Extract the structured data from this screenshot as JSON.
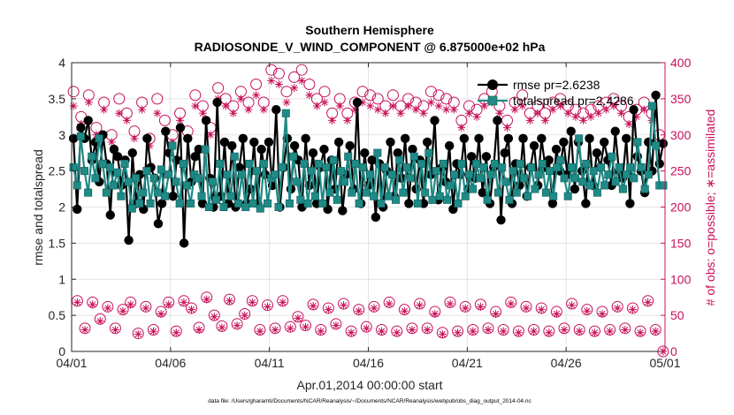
{
  "chart_data": {
    "type": "line",
    "title": "Southern Hemisphere",
    "subtitle": "RADIOSONDE_V_WIND_COMPONENT @ 6.875000e+02 hPa",
    "xlabel": "Apr.01,2014 00:00:00 start",
    "ylabel_left": "rmse and totalspread",
    "ylabel_right": "# of obs: o=possible; ∗=assimilated",
    "footer": "data file: /Users/gharamti/Documents/NCAR/Reanalysis/~/Documents/NCAR/Reanalysis/webpub/obs_diag_output_2014-04.nc",
    "xlim": [
      0,
      30
    ],
    "ylim_left": [
      0,
      4
    ],
    "ylim_right": [
      0,
      400
    ],
    "x_ticks": [
      0,
      5,
      10,
      15,
      20,
      25,
      30
    ],
    "x_tick_labels": [
      "04/01",
      "04/06",
      "04/11",
      "04/16",
      "04/21",
      "04/26",
      "05/01"
    ],
    "y_left_ticks": [
      "0",
      "0.5",
      "1",
      "1.5",
      "2",
      "2.5",
      "3",
      "3.5",
      "4"
    ],
    "y_right_ticks": [
      "0",
      "50",
      "100",
      "150",
      "200",
      "250",
      "300",
      "350",
      "400"
    ],
    "legend": {
      "position": "top-right",
      "entries": [
        "rmse pr=2.6238",
        "totalspread pr=2.4286"
      ]
    },
    "colors": {
      "rmse": "#000000",
      "spread": "#1f8a86",
      "spread_edge": "#0e5f5c",
      "obs": "#c8105a",
      "axis": "#262626",
      "grid": "#dcdcdc"
    },
    "series": [
      {
        "name": "rmse",
        "axis": "left",
        "values": [
          2.95,
          1.97,
          3.1,
          2.95,
          3.2,
          2.65,
          2.9,
          2.35,
          3.0,
          2.6,
          1.89,
          2.8,
          2.7,
          2.3,
          2.65,
          1.54,
          2.75,
          2.05,
          2.45,
          1.97,
          2.95,
          2.55,
          2.4,
          1.77,
          2.05,
          3.05,
          2.75,
          2.15,
          2.65,
          3.1,
          1.5,
          2.95,
          2.35,
          2.7,
          2.8,
          2.05,
          3.2,
          2.4,
          2.0,
          3.45,
          2.15,
          2.9,
          2.05,
          2.85,
          2.0,
          2.55,
          2.95,
          2.05,
          2.25,
          2.9,
          2.05,
          2.8,
          2.45,
          2.9,
          2.3,
          3.35,
          2.0,
          2.55,
          2.95,
          2.25,
          2.85,
          2.65,
          2.0,
          2.95,
          2.3,
          2.75,
          2.05,
          2.55,
          2.8,
          1.97,
          2.65,
          2.25,
          2.9,
          1.95,
          2.45,
          2.85,
          2.25,
          3.45,
          2.05,
          2.75,
          2.3,
          2.65,
          1.86,
          2.6,
          2.0,
          2.5,
          2.9,
          2.15,
          2.75,
          2.4,
          2.95,
          2.05,
          2.8,
          2.25,
          2.65,
          2.05,
          2.9,
          2.45,
          3.2,
          2.1,
          2.55,
          2.35,
          2.85,
          1.97,
          2.6,
          2.45,
          2.95,
          2.25,
          2.7,
          2.4,
          2.95,
          2.2,
          2.7,
          2.05,
          2.55,
          3.2,
          1.82,
          2.75,
          2.95,
          2.05,
          2.6,
          2.3,
          2.95,
          2.15,
          2.55,
          2.85,
          2.3,
          2.95,
          2.55,
          2.65,
          2.05,
          2.8,
          2.5,
          2.9,
          2.45,
          3.05,
          2.25,
          2.9,
          2.5,
          2.05,
          2.95,
          2.3,
          2.75,
          2.55,
          2.9,
          2.65,
          2.3,
          3.05,
          2.5,
          2.4,
          2.95,
          2.05,
          3.35,
          2.7,
          2.5,
          2.2,
          2.9,
          2.5,
          3.55,
          2.6,
          2.88
        ]
      },
      {
        "name": "totalspread",
        "axis": "left",
        "values": [
          2.55,
          2.3,
          2.98,
          2.5,
          2.2,
          2.7,
          2.4,
          2.95,
          2.6,
          2.2,
          2.55,
          2.3,
          2.48,
          2.15,
          2.6,
          2.35,
          1.98,
          2.4,
          2.05,
          2.2,
          2.5,
          2.05,
          2.4,
          2.2,
          2.52,
          2.15,
          2.45,
          2.85,
          2.35,
          2.05,
          2.6,
          2.3,
          2.05,
          2.45,
          2.4,
          2.15,
          2.8,
          2.0,
          2.35,
          2.1,
          2.6,
          2.0,
          2.45,
          2.15,
          2.7,
          2.05,
          2.45,
          2.0,
          2.6,
          2.05,
          2.5,
          1.98,
          2.6,
          2.05,
          2.4,
          2.45,
          2.0,
          2.55,
          3.3,
          2.05,
          2.7,
          2.35,
          2.1,
          2.6,
          2.05,
          2.5,
          2.15,
          2.6,
          2.05,
          2.55,
          2.2,
          2.65,
          2.1,
          2.5,
          2.35,
          2.7,
          2.2,
          2.6,
          2.05,
          2.55,
          2.2,
          2.45,
          2.15,
          2.75,
          2.05,
          2.55,
          2.15,
          2.45,
          2.1,
          2.65,
          2.2,
          2.55,
          2.4,
          2.7,
          2.05,
          2.6,
          2.2,
          2.75,
          2.1,
          2.5,
          2.15,
          2.6,
          2.1,
          2.3,
          2.45,
          2.05,
          2.6,
          2.15,
          2.45,
          2.25,
          2.6,
          2.4,
          2.55,
          2.1,
          2.45,
          2.6,
          2.2,
          2.55,
          2.35,
          2.1,
          2.5,
          2.2,
          2.6,
          2.4,
          2.15,
          2.55,
          2.25,
          2.45,
          2.6,
          2.2,
          2.5,
          2.15,
          2.55,
          2.65,
          2.4,
          2.15,
          2.55,
          2.4,
          2.95,
          2.35,
          2.6,
          2.3,
          2.5,
          2.2,
          2.55,
          2.3,
          2.45,
          2.7,
          2.35,
          2.55,
          2.25,
          2.45,
          2.55,
          2.4,
          2.9,
          2.55,
          2.25,
          2.45,
          3.4,
          2.85,
          2.3,
          2.3
        ]
      },
      {
        "name": "possible",
        "axis": "right",
        "marker": "circle",
        "values": [
          360,
          70,
          325,
          32,
          355,
          68,
          310,
          45,
          345,
          62,
          300,
          32,
          350,
          58,
          330,
          68,
          305,
          25,
          345,
          62,
          295,
          30,
          350,
          55,
          320,
          68,
          300,
          28,
          330,
          70,
          305,
          60,
          355,
          33,
          340,
          75,
          310,
          50,
          365,
          35,
          350,
          72,
          340,
          38,
          360,
          52,
          345,
          70,
          370,
          30,
          345,
          64,
          390,
          32,
          385,
          70,
          360,
          34,
          380,
          48,
          390,
          36,
          370,
          65,
          350,
          30,
          360,
          60,
          330,
          38,
          350,
          66,
          330,
          28,
          345,
          58,
          360,
          34,
          355,
          62,
          350,
          30,
          340,
          68,
          355,
          28,
          340,
          58,
          350,
          32,
          345,
          66,
          340,
          32,
          360,
          55,
          355,
          26,
          350,
          68,
          345,
          28,
          320,
          62,
          340,
          30,
          335,
          65,
          350,
          32,
          360,
          55,
          340,
          30,
          320,
          68,
          345,
          28,
          355,
          62,
          330,
          30,
          340,
          60,
          330,
          28,
          345,
          55,
          350,
          32,
          340,
          66,
          335,
          30,
          330,
          58,
          335,
          28,
          340,
          55,
          345,
          30,
          350,
          62,
          340,
          32,
          325,
          60,
          335,
          28,
          345,
          70,
          330,
          30,
          300,
          0
        ]
      },
      {
        "name": "assimilated",
        "axis": "right",
        "marker": "asterisk",
        "values": [
          340,
          68,
          315,
          30,
          345,
          65,
          300,
          42,
          335,
          60,
          290,
          30,
          330,
          56,
          320,
          65,
          295,
          24,
          335,
          60,
          285,
          28,
          330,
          52,
          305,
          65,
          290,
          26,
          320,
          68,
          295,
          58,
          340,
          30,
          330,
          72,
          300,
          48,
          350,
          33,
          340,
          70,
          330,
          36,
          350,
          50,
          335,
          68,
          355,
          28,
          335,
          62,
          375,
          30,
          370,
          68,
          345,
          32,
          365,
          46,
          375,
          34,
          355,
          63,
          340,
          28,
          345,
          58,
          320,
          36,
          340,
          64,
          320,
          26,
          335,
          56,
          345,
          32,
          340,
          60,
          335,
          28,
          330,
          66,
          340,
          26,
          330,
          56,
          340,
          30,
          335,
          64,
          330,
          30,
          345,
          52,
          340,
          24,
          335,
          66,
          335,
          26,
          310,
          60,
          330,
          28,
          325,
          62,
          340,
          30,
          345,
          52,
          330,
          28,
          310,
          66,
          335,
          26,
          340,
          60,
          320,
          28,
          330,
          58,
          320,
          26,
          335,
          52,
          340,
          30,
          330,
          64,
          325,
          28,
          320,
          56,
          325,
          26,
          330,
          52,
          335,
          28,
          340,
          60,
          330,
          30,
          315,
          58,
          325,
          26,
          335,
          68,
          320,
          28,
          290,
          0
        ]
      }
    ]
  }
}
